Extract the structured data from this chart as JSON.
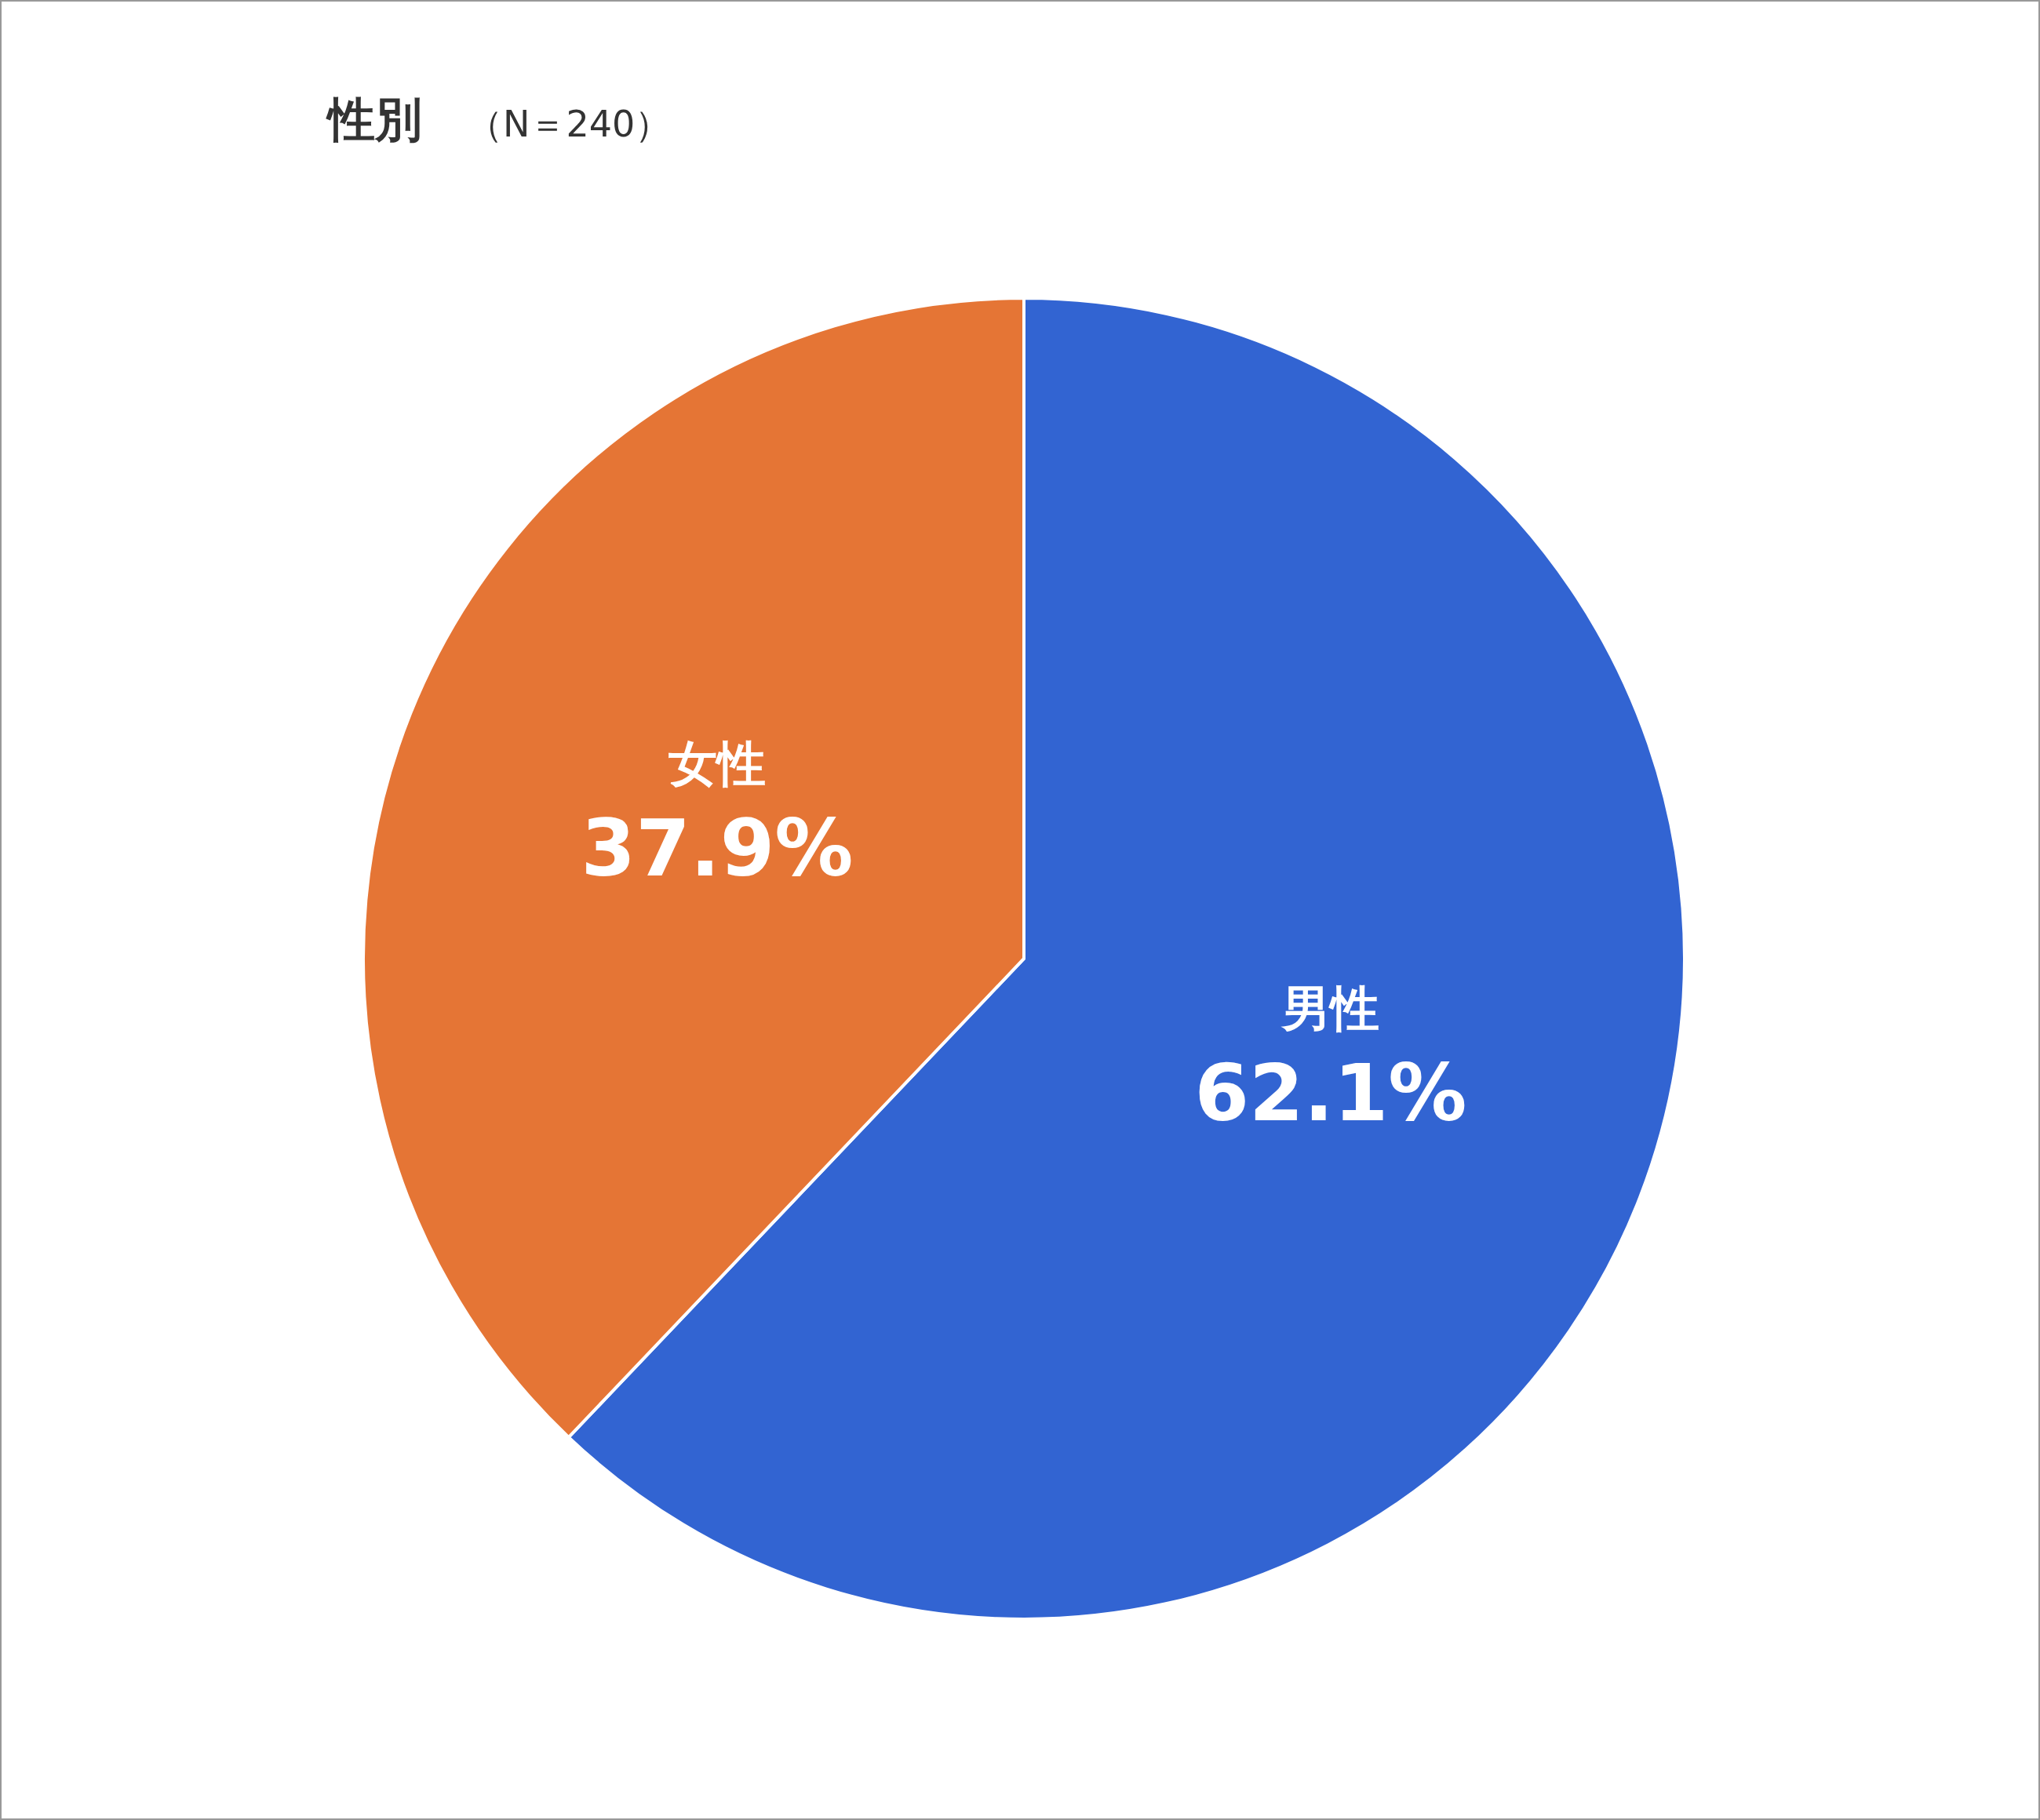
{
  "chart_data": {
    "type": "pie",
    "title": "性別",
    "subtitle": "（N＝240）",
    "categories": [
      "男性",
      "女性"
    ],
    "values": [
      62.1,
      37.9
    ],
    "colors": [
      "#3264d2",
      "#e57535"
    ],
    "data_labels": true,
    "value_labels": [
      "62.1%",
      "37.9%"
    ]
  }
}
